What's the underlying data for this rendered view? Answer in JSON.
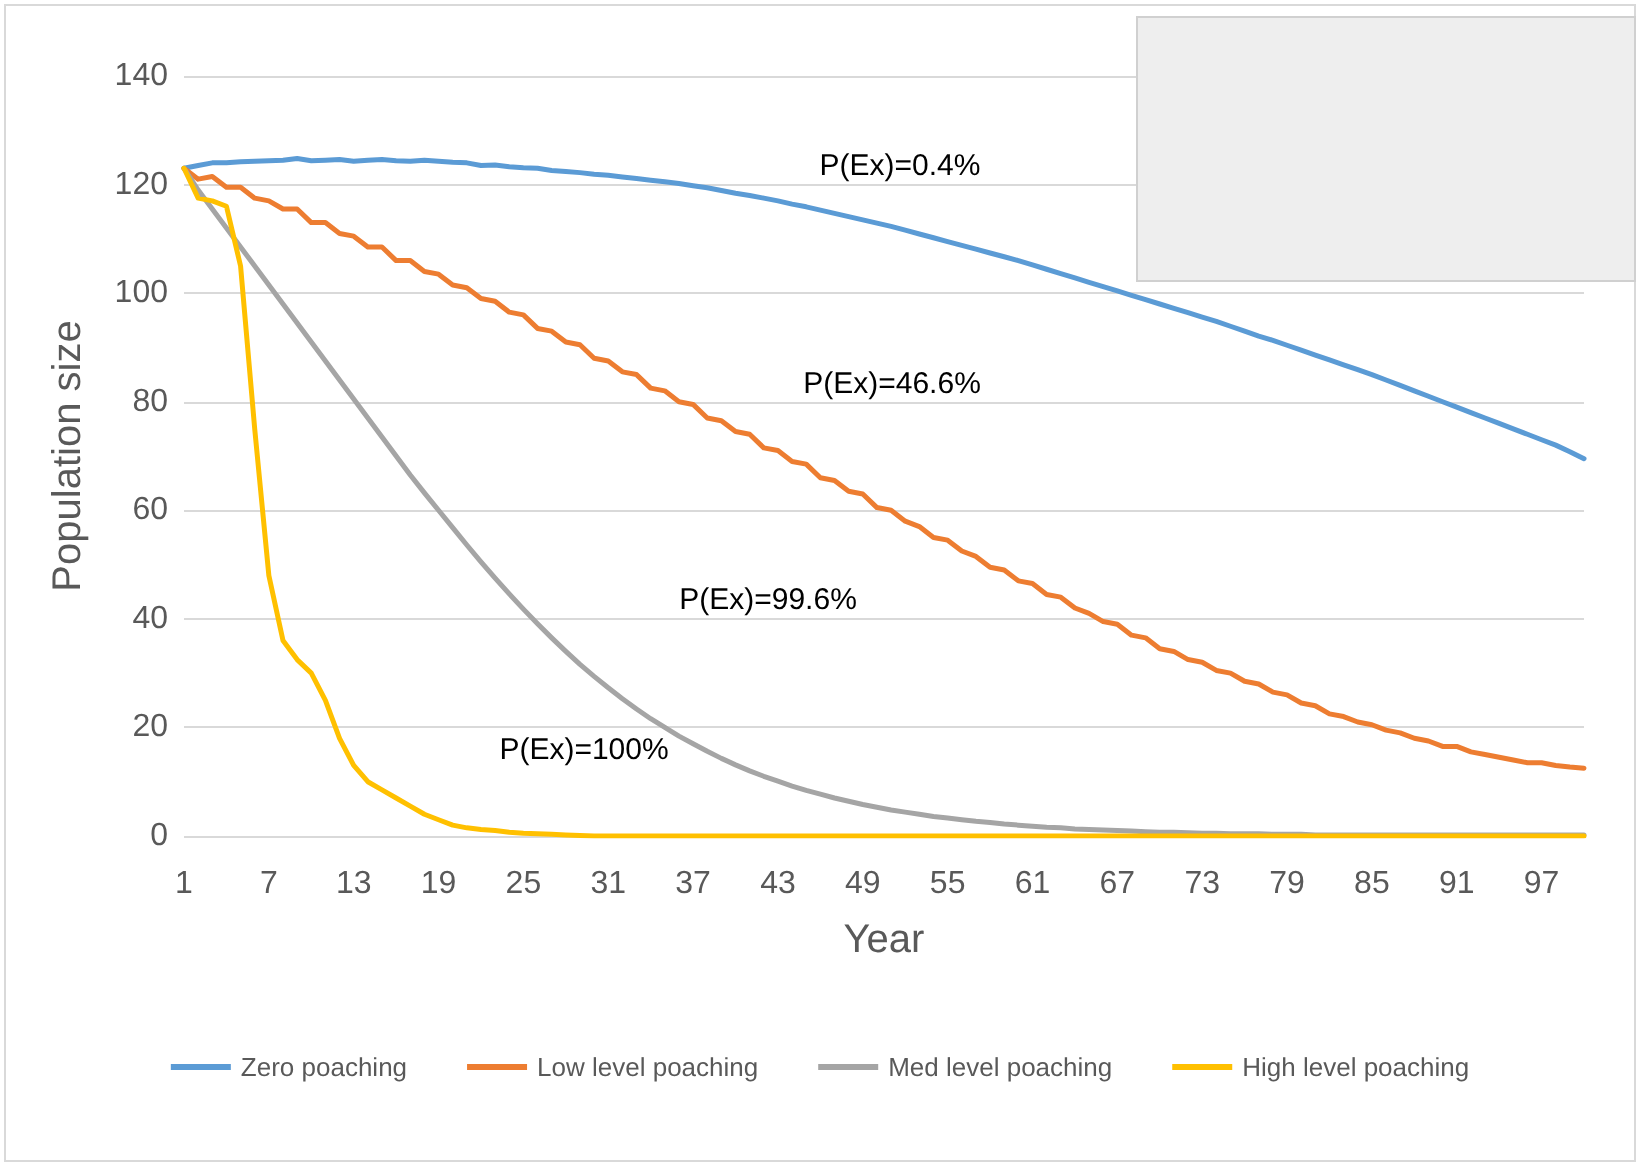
{
  "chart_data": {
    "type": "line",
    "xlabel": "Year",
    "ylabel": "Population size",
    "categories": [
      "1",
      null,
      null,
      null,
      null,
      null,
      "7",
      null,
      null,
      null,
      null,
      null,
      "13",
      null,
      null,
      null,
      null,
      null,
      "19",
      null,
      null,
      null,
      null,
      null,
      "25",
      null,
      null,
      null,
      null,
      null,
      "31",
      null,
      null,
      null,
      null,
      null,
      "37",
      null,
      null,
      null,
      null,
      null,
      "43",
      null,
      null,
      null,
      null,
      null,
      "49",
      null,
      null,
      null,
      null,
      null,
      "55",
      null,
      null,
      null,
      null,
      null,
      "61",
      null,
      null,
      null,
      null,
      null,
      "67",
      null,
      null,
      null,
      null,
      null,
      "73",
      null,
      null,
      null,
      null,
      null,
      "79",
      null,
      null,
      null,
      null,
      null,
      "85",
      null,
      null,
      null,
      null,
      null,
      "91",
      null,
      null,
      null,
      null,
      null,
      "97",
      null,
      null,
      null
    ],
    "series": [
      {
        "name": "Zero poaching",
        "color": "#5b9bd5",
        "values": [
          123,
          123.5,
          124,
          124,
          124.2,
          124.3,
          124.4,
          124.5,
          124.8,
          124.4,
          124.5,
          124.6,
          124.3,
          124.5,
          124.6,
          124.4,
          124.3,
          124.5,
          124.3,
          124.1,
          124,
          123.5,
          123.6,
          123.3,
          123.1,
          123,
          122.6,
          122.4,
          122.2,
          121.9,
          121.7,
          121.4,
          121.1,
          120.8,
          120.5,
          120.2,
          119.8,
          119.4,
          118.9,
          118.4,
          118,
          117.5,
          117,
          116.4,
          115.9,
          115.3,
          114.7,
          114.1,
          113.5,
          112.9,
          112.3,
          111.6,
          110.9,
          110.2,
          109.5,
          108.8,
          108.1,
          107.4,
          106.7,
          106,
          105.2,
          104.4,
          103.6,
          102.8,
          102,
          101.2,
          100.4,
          99.6,
          98.8,
          98,
          97.2,
          96.4,
          95.6,
          94.8,
          93.9,
          93,
          92.1,
          91.3,
          90.4,
          89.5,
          88.6,
          87.7,
          86.8,
          85.9,
          85,
          84,
          83,
          82,
          81,
          80,
          79,
          78,
          77,
          76,
          75,
          74,
          73,
          72,
          70.8,
          69.5
        ]
      },
      {
        "name": "Low level poaching",
        "color": "#ed7d31",
        "values": [
          123,
          121,
          121.5,
          119.5,
          119.5,
          117.5,
          117,
          115.5,
          115.5,
          113,
          113,
          111,
          110.5,
          108.5,
          108.5,
          106,
          106,
          104,
          103.5,
          101.5,
          101,
          99,
          98.5,
          96.5,
          96,
          93.5,
          93,
          91,
          90.5,
          88,
          87.5,
          85.5,
          85,
          82.5,
          82,
          80,
          79.5,
          77,
          76.5,
          74.5,
          74,
          71.5,
          71,
          69,
          68.5,
          66,
          65.5,
          63.5,
          63,
          60.5,
          60,
          58,
          57,
          55,
          54.5,
          52.5,
          51.5,
          49.5,
          49,
          47,
          46.5,
          44.5,
          44,
          42,
          41,
          39.5,
          39,
          37,
          36.5,
          34.5,
          34,
          32.5,
          32,
          30.5,
          30,
          28.5,
          28,
          26.5,
          26,
          24.5,
          24,
          22.5,
          22,
          21,
          20.5,
          19.5,
          19,
          18,
          17.5,
          16.5,
          16.5,
          15.5,
          15,
          14.5,
          14,
          13.5,
          13.5,
          13,
          12.7,
          12.5
        ]
      },
      {
        "name": "Med level poaching",
        "color": "#a5a5a5",
        "values": [
          123,
          119,
          115.5,
          112,
          108.5,
          105,
          101.5,
          98,
          94.5,
          91,
          87.5,
          84,
          80.5,
          77,
          73.5,
          70,
          66.5,
          63.2,
          60,
          56.8,
          53.6,
          50.5,
          47.5,
          44.6,
          41.8,
          39.1,
          36.5,
          34,
          31.6,
          29.4,
          27.3,
          25.3,
          23.4,
          21.6,
          20,
          18.4,
          17,
          15.6,
          14.3,
          13.1,
          12,
          11,
          10.1,
          9.2,
          8.4,
          7.7,
          7,
          6.4,
          5.8,
          5.3,
          4.8,
          4.4,
          4,
          3.6,
          3.3,
          3,
          2.7,
          2.5,
          2.2,
          2,
          1.8,
          1.6,
          1.5,
          1.3,
          1.2,
          1.1,
          1,
          0.9,
          0.8,
          0.7,
          0.7,
          0.6,
          0.5,
          0.5,
          0.4,
          0.4,
          0.4,
          0.3,
          0.3,
          0.3,
          0.2,
          0.2,
          0.2,
          0.2,
          0.2,
          0.2,
          0.2,
          0.2,
          0.2,
          0.2,
          0.2,
          0.2,
          0.2,
          0.2,
          0.2,
          0.2,
          0.2,
          0.2,
          0.2,
          0.2
        ]
      },
      {
        "name": "High level poaching",
        "color": "#ffc000",
        "values": [
          123,
          117.5,
          117,
          116,
          105,
          75,
          48,
          36,
          32.5,
          30,
          25,
          18,
          13,
          10,
          8.5,
          7,
          5.5,
          4,
          3,
          2,
          1.5,
          1.2,
          1,
          0.7,
          0.5,
          0.4,
          0.3,
          0.2,
          0.1,
          0,
          0,
          0,
          0,
          0,
          0,
          0,
          0,
          0,
          0,
          0,
          0,
          0,
          0,
          0,
          0,
          0,
          0,
          0,
          0,
          0,
          0,
          0,
          0,
          0,
          0,
          0,
          0,
          0,
          0,
          0,
          0,
          0,
          0,
          0,
          0,
          0,
          0,
          0,
          0,
          0,
          0,
          0,
          0,
          0,
          0,
          0,
          0,
          0,
          0,
          0,
          0,
          0,
          0,
          0,
          0,
          0,
          0,
          0,
          0,
          0,
          0,
          0,
          0,
          0,
          0,
          0,
          0,
          0,
          0,
          0
        ]
      }
    ],
    "ylim": [
      0,
      140
    ],
    "yticks": [
      0,
      20,
      40,
      60,
      80,
      100,
      120,
      140
    ],
    "grid": "y",
    "legend": "bottom",
    "marker": "none",
    "line_style": "solid",
    "annotations": [
      "P(Ex)=0.4%",
      "P(Ex)=46.6%",
      "P(Ex)=99.6%",
      "P(Ex)=100%"
    ]
  }
}
